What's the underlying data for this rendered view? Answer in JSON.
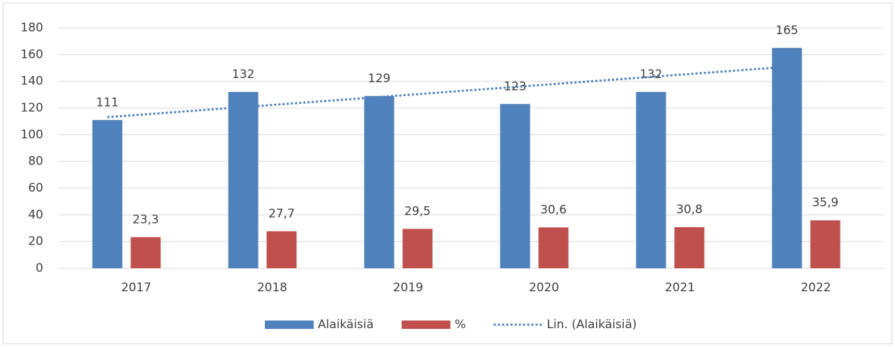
{
  "chart_data": {
    "type": "bar",
    "categories": [
      "2017",
      "2018",
      "2019",
      "2020",
      "2021",
      "2022"
    ],
    "series": [
      {
        "name": "Alaikäisiä",
        "color": "#4f81bd",
        "values": [
          111,
          132,
          129,
          123,
          132,
          165
        ]
      },
      {
        "name": "%",
        "color": "#c0504d",
        "values": [
          23.3,
          27.7,
          29.5,
          30.6,
          30.8,
          35.9
        ],
        "value_labels": [
          "23,3",
          "27,7",
          "29,5",
          "30,6",
          "30,8",
          "35,9"
        ]
      }
    ],
    "trendline": {
      "name": "Lin. (Alaikäisiä)",
      "type": "linear",
      "color": "#4f81bd"
    },
    "ylim": [
      0,
      180
    ],
    "yticks": [
      0,
      20,
      40,
      60,
      80,
      100,
      120,
      140,
      160,
      180
    ],
    "grid": true,
    "legend": "bottom"
  }
}
